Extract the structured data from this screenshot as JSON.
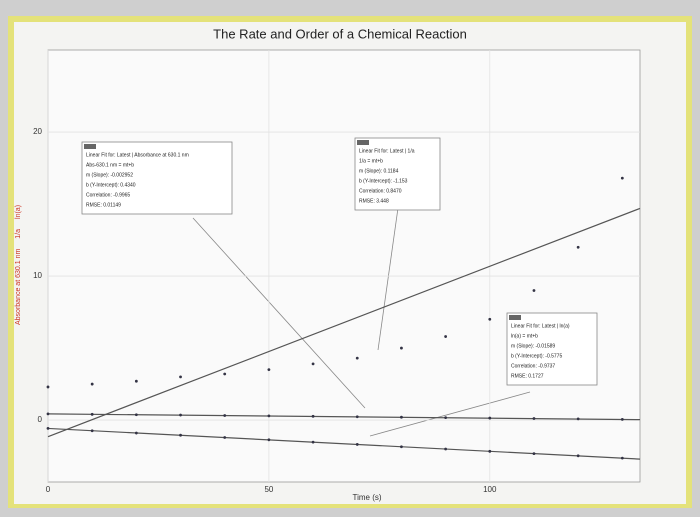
{
  "chart_data": {
    "type": "scatter",
    "title": "The Rate and Order of a Chemical Reaction",
    "x_label": "Time (s)",
    "x": [
      0,
      10,
      20,
      30,
      40,
      50,
      60,
      70,
      80,
      90,
      100,
      110,
      120,
      130
    ],
    "xlim": [
      0,
      134
    ],
    "xticks": [
      0,
      50,
      100
    ],
    "ylim": [
      -4.3,
      25.7
    ],
    "yticks": [
      0,
      10,
      20
    ],
    "grid": true,
    "series": [
      {
        "name": "Absorbance at 630.1 nm",
        "color": "#cc3322",
        "values": [
          0.43,
          0.4,
          0.37,
          0.35,
          0.32,
          0.29,
          0.26,
          0.23,
          0.2,
          0.17,
          0.14,
          0.11,
          0.08,
          0.05
        ],
        "fit_line": {
          "x": [
            0,
            134
          ],
          "values": [
            0.43,
            0.03
          ]
        },
        "fit_box": [
          "Linear Fit for: Latest | Absorbance at 630.1 nm",
          "Abs-630.1 nm = mt+b",
          "m (Slope): -0.002952",
          "b (Y-Intercept): 0.4340",
          "Correlation: -0.9965",
          "RMSE: 0.01149"
        ]
      },
      {
        "name": "1/a",
        "color": "#cc3322",
        "values": [
          2.3,
          2.5,
          2.7,
          3.0,
          3.2,
          3.5,
          3.9,
          4.3,
          5.0,
          5.8,
          7.0,
          9.0,
          12.0,
          16.8
        ],
        "fit_line": {
          "x": [
            0,
            134
          ],
          "values": [
            -1.15,
            14.7
          ]
        },
        "fit_box": [
          "Linear Fit for: Latest | 1/a",
          "1/a = mt+b",
          "m (Slope): 0.1184",
          "b (Y-Intercept): -1.153",
          "Correlation: 0.8470",
          "RMSE: 3.448"
        ]
      },
      {
        "name": "ln(a)",
        "color": "#cc3322",
        "values": [
          -0.58,
          -0.74,
          -0.9,
          -1.05,
          -1.21,
          -1.37,
          -1.53,
          -1.69,
          -1.85,
          -2.01,
          -2.17,
          -2.33,
          -2.48,
          -2.64
        ],
        "fit_line": {
          "x": [
            0,
            134
          ],
          "values": [
            -0.58,
            -2.71
          ]
        },
        "fit_box": [
          "Linear Fit for: Latest | ln(a)",
          "ln(a) = mt+b",
          "m (Slope): -0.01589",
          "b (Y-Intercept): -0.5775",
          "Correlation: -0.9737",
          "RMSE: 0.1727"
        ]
      }
    ]
  }
}
